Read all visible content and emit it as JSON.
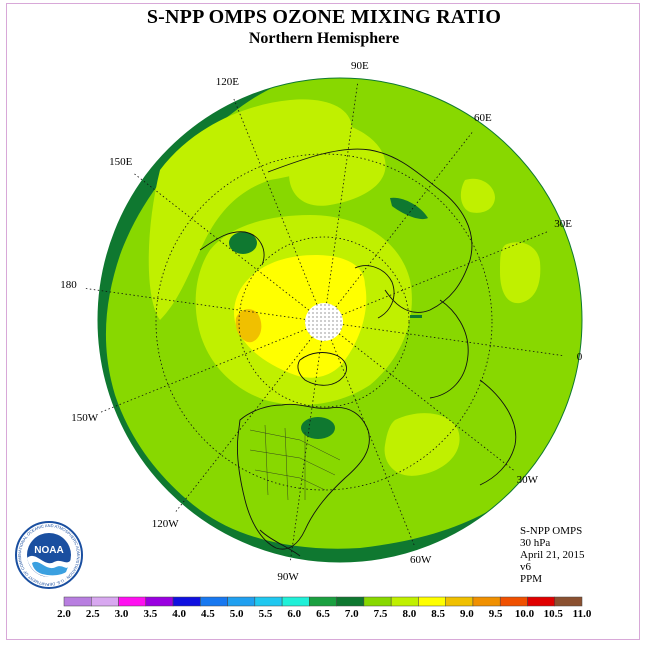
{
  "title": "S-NPP OMPS OZONE MIXING RATIO",
  "subtitle": "Northern Hemisphere",
  "longitude_labels": [
    {
      "text": "90E",
      "lon": 90
    },
    {
      "text": "60E",
      "lon": 60
    },
    {
      "text": "30E",
      "lon": 30
    },
    {
      "text": "0",
      "lon": 0
    },
    {
      "text": "30W",
      "lon": -30
    },
    {
      "text": "60W",
      "lon": -60
    },
    {
      "text": "90W",
      "lon": -90
    },
    {
      "text": "120W",
      "lon": -120
    },
    {
      "text": "150W",
      "lon": -150
    },
    {
      "text": "180",
      "lon": 180
    },
    {
      "text": "150E",
      "lon": 150
    },
    {
      "text": "120E",
      "lon": 120
    }
  ],
  "info": {
    "instrument": "S-NPP OMPS",
    "level": "30 hPa",
    "date": "April 21, 2015",
    "version": "v6",
    "units": "PPM"
  },
  "logo": {
    "text": "NOAA",
    "ring_text": "NATIONAL OCEANIC AND ATMOSPHERIC ADMINISTRATION · U.S. DEPARTMENT OF COMMERCE"
  },
  "colorbar": {
    "labels": [
      "2.0",
      "2.5",
      "3.0",
      "3.5",
      "4.0",
      "4.5",
      "5.0",
      "5.5",
      "6.0",
      "6.5",
      "7.0",
      "7.5",
      "8.0",
      "8.5",
      "9.0",
      "9.5",
      "10.0",
      "10.5",
      "11.0"
    ],
    "colors": [
      "#b87ee0",
      "#d8a8f0",
      "#ff10f0",
      "#9a00e0",
      "#1010e0",
      "#1878f0",
      "#20a0f0",
      "#20c8f0",
      "#20f0d8",
      "#1aa040",
      "#0f7830",
      "#88d800",
      "#c0f000",
      "#ffff00",
      "#f0c000",
      "#f09000",
      "#f05000",
      "#e00000",
      "#8a5030"
    ]
  },
  "chart_data": {
    "type": "heatmap",
    "projection": "north-polar-stereographic",
    "field": "ozone mixing ratio",
    "units": "PPM",
    "pressure_level": "30 hPa",
    "date": "April 21, 2015",
    "color_scale_min": 2.0,
    "color_scale_max": 11.0,
    "color_scale_step": 0.5,
    "pole_missing_data": true,
    "regions": [
      {
        "description": "outer low-latitude band",
        "range": [
          6.5,
          7.0
        ]
      },
      {
        "description": "mid-latitude background",
        "range": [
          7.5,
          8.0
        ]
      },
      {
        "description": "near-pole high",
        "range": [
          8.5,
          9.0
        ]
      },
      {
        "description": "local max near 180 meridian",
        "range": [
          9.0,
          9.5
        ]
      },
      {
        "description": "pockets over Siberia, east of Pacific and Hudson Bay",
        "range": [
          6.5,
          7.0
        ]
      }
    ],
    "dotted_graticule": true,
    "latitude_circles": [
      30,
      60
    ],
    "meridian_spacing_deg": 30
  }
}
